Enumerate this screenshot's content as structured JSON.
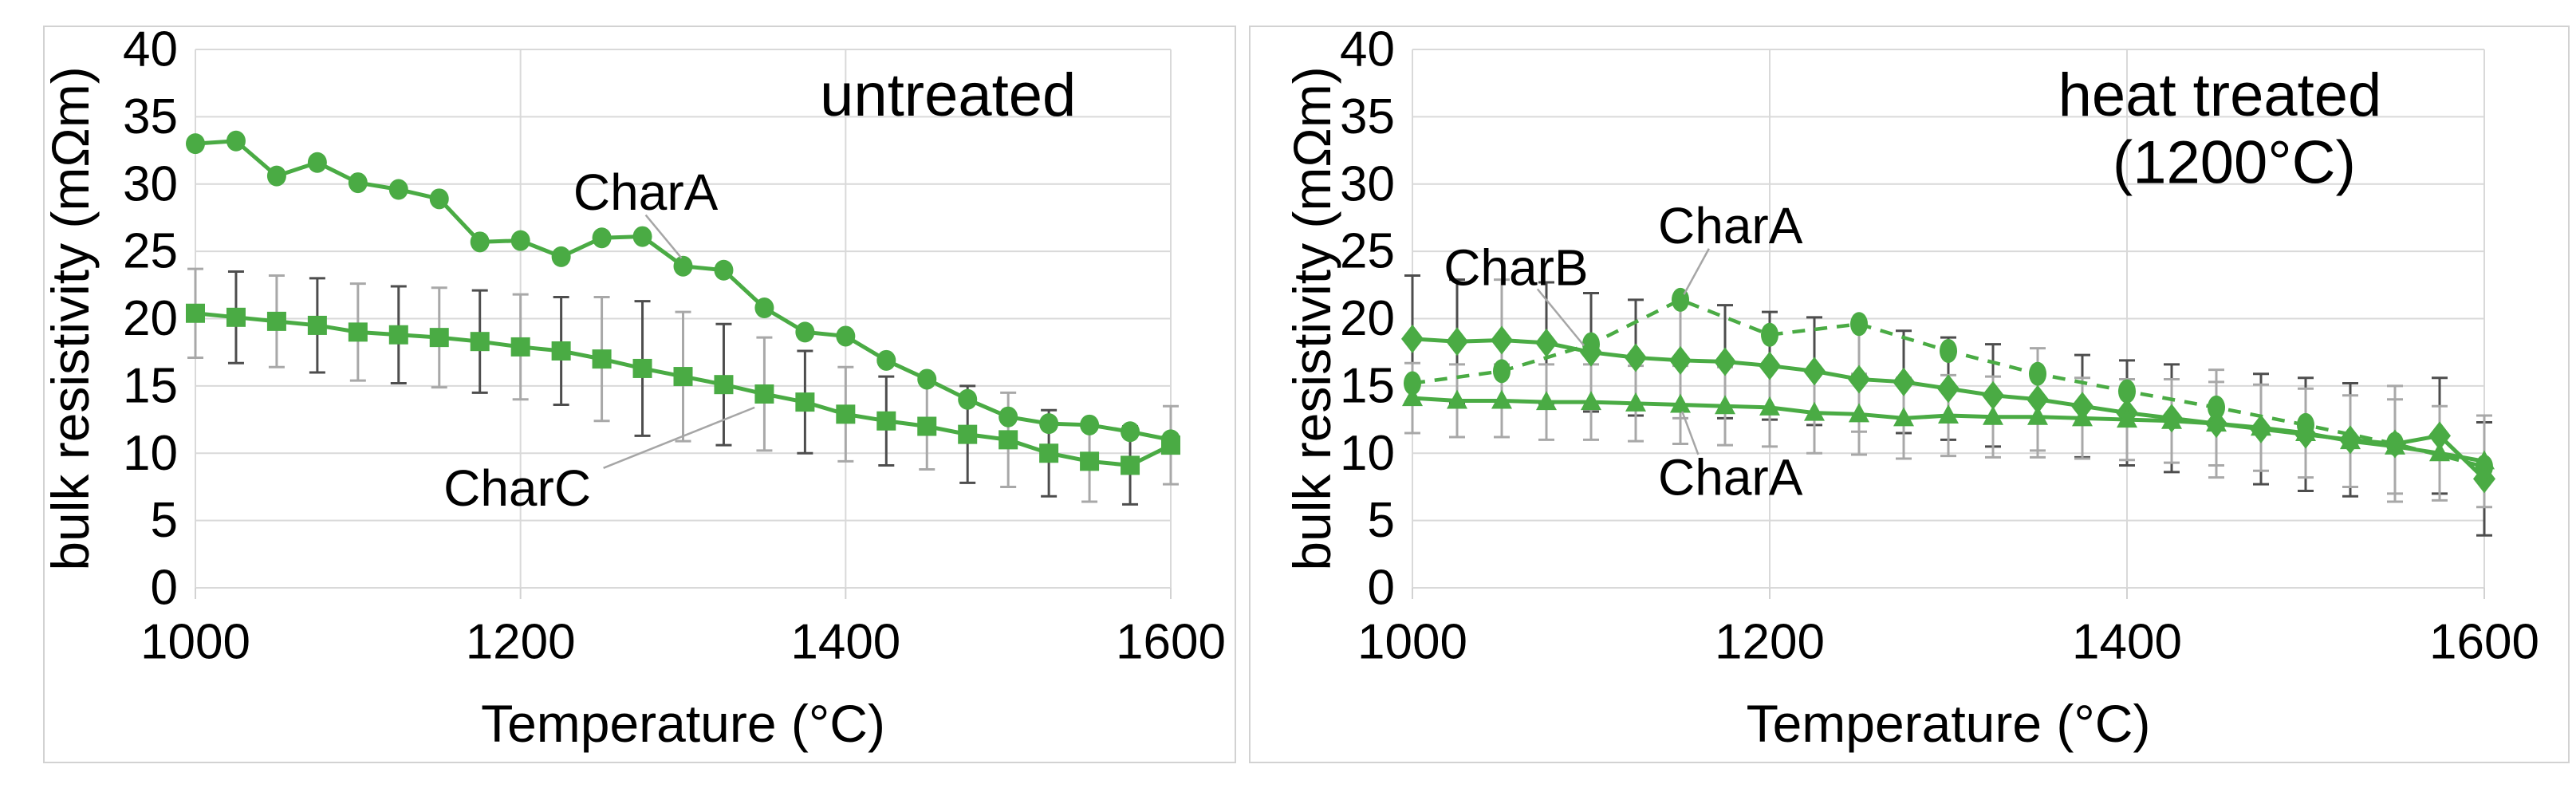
{
  "colors": {
    "series_green": "#4aab44",
    "gridline": "#d9d9d9",
    "panel_border": "#d2d2d2",
    "error_bar_dark": "#4d4d4d",
    "error_bar_light": "#a8a8a8",
    "leader_line": "#a6a6a6",
    "text": "#000000",
    "background": "#ffffff"
  },
  "chart_data": [
    {
      "type": "line",
      "title": "untreated",
      "title_lines": [
        {
          "text": "untreated",
          "t": 1463,
          "v": 36.6
        }
      ],
      "xlabel": "Temperature (°C)",
      "ylabel": "bulk resistivity (mΩm)",
      "xlim": [
        1000,
        1600
      ],
      "ylim": [
        0,
        40
      ],
      "xticks": [
        1000,
        1200,
        1400,
        1600
      ],
      "yticks": [
        0,
        5,
        10,
        15,
        20,
        25,
        30,
        35,
        40
      ],
      "x_gridlines": [
        1200,
        1400,
        1600
      ],
      "grid": "on",
      "legend_position": "none",
      "series": [
        {
          "name": "CharA",
          "marker": "circle",
          "line": "solid",
          "x": [
            1000,
            1025,
            1050,
            1075,
            1100,
            1125,
            1150,
            1175,
            1200,
            1225,
            1250,
            1275,
            1300,
            1325,
            1350,
            1375,
            1400,
            1425,
            1450,
            1475,
            1500,
            1525,
            1550,
            1575,
            1600
          ],
          "y": [
            33.0,
            33.2,
            30.6,
            31.6,
            30.1,
            29.6,
            28.9,
            25.7,
            25.8,
            24.6,
            26.0,
            26.1,
            23.9,
            23.6,
            20.8,
            19.0,
            18.7,
            16.9,
            15.5,
            14.0,
            12.7,
            12.2,
            12.1,
            11.6,
            11.0
          ],
          "error": null
        },
        {
          "name": "CharC",
          "marker": "square",
          "line": "solid",
          "x": [
            1000,
            1025,
            1050,
            1075,
            1100,
            1125,
            1150,
            1175,
            1200,
            1225,
            1250,
            1275,
            1300,
            1325,
            1350,
            1375,
            1400,
            1425,
            1450,
            1475,
            1500,
            1525,
            1550,
            1575,
            1600
          ],
          "y": [
            20.4,
            20.1,
            19.8,
            19.5,
            19.0,
            18.8,
            18.6,
            18.3,
            17.9,
            17.6,
            17.0,
            16.3,
            15.7,
            15.1,
            14.4,
            13.8,
            12.9,
            12.4,
            12.0,
            11.4,
            11.0,
            10.0,
            9.4,
            9.1,
            10.6
          ],
          "error": [
            3.3,
            3.4,
            3.4,
            3.5,
            3.6,
            3.6,
            3.7,
            3.8,
            3.9,
            4.0,
            4.6,
            5.0,
            4.8,
            4.5,
            4.2,
            3.8,
            3.5,
            3.3,
            3.2,
            3.6,
            3.5,
            3.2,
            3.0,
            2.9,
            2.9
          ]
        }
      ],
      "annotations": [
        {
          "label": "CharA",
          "t": 1277,
          "v": 29.4,
          "leader": [
            1277,
            27.7,
            1299,
            24.5
          ]
        },
        {
          "label": "CharC",
          "t": 1198,
          "v": 7.4,
          "leader": [
            1251,
            8.9,
            1344,
            13.4
          ]
        }
      ]
    },
    {
      "type": "line",
      "title": "heat treated (1200°C)",
      "title_lines": [
        {
          "text": "heat treated",
          "t": 1452,
          "v": 36.6
        },
        {
          "text": "(1200°C)",
          "t": 1460,
          "v": 31.6
        }
      ],
      "xlabel": "Temperature (°C)",
      "ylabel": "bulk resistivity (mΩm)",
      "xlim": [
        1000,
        1600
      ],
      "ylim": [
        0,
        40
      ],
      "xticks": [
        1000,
        1200,
        1400,
        1600
      ],
      "yticks": [
        0,
        5,
        10,
        15,
        20,
        25,
        30,
        35,
        40
      ],
      "x_gridlines": [
        1200,
        1400,
        1600
      ],
      "grid": "on",
      "legend_position": "none",
      "series": [
        {
          "name": "CharB",
          "marker": "diamond",
          "line": "solid",
          "x": [
            1000,
            1025,
            1050,
            1075,
            1100,
            1125,
            1150,
            1175,
            1200,
            1225,
            1250,
            1275,
            1300,
            1325,
            1350,
            1375,
            1400,
            1425,
            1450,
            1475,
            1500,
            1525,
            1550,
            1575,
            1600
          ],
          "y": [
            18.5,
            18.3,
            18.4,
            18.2,
            17.5,
            17.1,
            16.9,
            16.8,
            16.5,
            16.1,
            15.5,
            15.3,
            14.8,
            14.3,
            14.0,
            13.5,
            13.0,
            12.6,
            12.2,
            11.8,
            11.4,
            11.0,
            10.7,
            11.3,
            8.1
          ],
          "error": [
            4.7,
            4.6,
            4.5,
            4.5,
            4.4,
            4.3,
            4.3,
            4.2,
            4.0,
            4.0,
            3.9,
            3.8,
            3.8,
            3.8,
            3.8,
            3.8,
            3.9,
            4.0,
            4.0,
            4.1,
            4.2,
            4.2,
            4.3,
            4.3,
            4.2
          ]
        },
        {
          "name": "CharA",
          "marker": "oval",
          "line": "dashed",
          "x": [
            1000,
            1050,
            1100,
            1150,
            1200,
            1250,
            1300,
            1350,
            1400,
            1450,
            1500,
            1550,
            1600
          ],
          "y": [
            15.2,
            16.1,
            18.1,
            21.4,
            18.8,
            19.6,
            17.6,
            15.9,
            14.6,
            13.4,
            12.1,
            10.7,
            9.0
          ],
          "error": null
        },
        {
          "name": "CharA",
          "marker": "triangle",
          "line": "solid",
          "x": [
            1000,
            1025,
            1050,
            1075,
            1100,
            1125,
            1150,
            1175,
            1200,
            1225,
            1250,
            1275,
            1300,
            1325,
            1350,
            1375,
            1400,
            1425,
            1450,
            1475,
            1500,
            1525,
            1550,
            1575,
            1600
          ],
          "y": [
            14.1,
            13.9,
            13.9,
            13.8,
            13.8,
            13.7,
            13.6,
            13.5,
            13.4,
            13.0,
            12.9,
            12.6,
            12.8,
            12.7,
            12.7,
            12.6,
            12.5,
            12.4,
            12.2,
            11.9,
            11.5,
            10.9,
            10.5,
            10.0,
            9.4
          ],
          "error": [
            2.6,
            2.7,
            2.7,
            2.8,
            2.8,
            2.8,
            2.9,
            2.9,
            2.9,
            3.0,
            3.0,
            3.0,
            3.0,
            3.0,
            3.0,
            3.0,
            3.0,
            3.1,
            3.1,
            3.2,
            3.3,
            3.4,
            3.5,
            3.5,
            3.4
          ]
        }
      ],
      "annotations": [
        {
          "label": "CharB",
          "t": 1058,
          "v": 23.8,
          "leader": [
            1070,
            22.2,
            1096,
            18.0
          ]
        },
        {
          "label": "CharA",
          "t": 1178,
          "v": 26.9,
          "leader": [
            1166,
            25.2,
            1152,
            21.8
          ]
        },
        {
          "label": "CharA",
          "t": 1178,
          "v": 8.2,
          "leader": [
            1160,
            9.9,
            1151,
            13.1
          ]
        }
      ]
    }
  ]
}
